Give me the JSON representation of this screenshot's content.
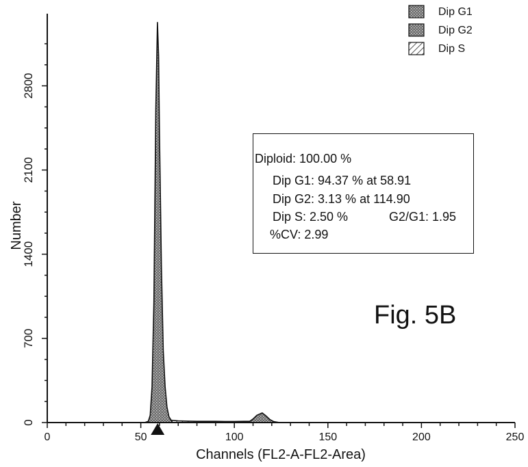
{
  "chart_data": {
    "type": "area",
    "xlabel": "Channels  (FL2-A-FL2-Area)",
    "ylabel": "Number",
    "xlim": [
      0,
      250
    ],
    "ylim": [
      0,
      3400
    ],
    "x_ticks": [
      0,
      50,
      100,
      150,
      200,
      250
    ],
    "y_ticks": [
      0,
      700,
      1400,
      2100,
      2800
    ],
    "grid": false,
    "legend_position": "top-right",
    "legend": [
      {
        "label": "Dip G1",
        "pattern": "dark-stipple"
      },
      {
        "label": "Dip G2",
        "pattern": "dark-stipple"
      },
      {
        "label": "Dip S",
        "pattern": "diagonal-hatch"
      }
    ],
    "series": [
      {
        "name": "Dip G1",
        "x": [
          52,
          54,
          55,
          56,
          57,
          58,
          58.91,
          59.5,
          60,
          61,
          62,
          63,
          64,
          65,
          67
        ],
        "y": [
          0,
          10,
          60,
          300,
          1000,
          2600,
          3330,
          3050,
          2400,
          1300,
          600,
          300,
          130,
          50,
          0
        ]
      },
      {
        "name": "Dip G2",
        "x": [
          106,
          108,
          110,
          112,
          114.9,
          117,
          119,
          121,
          124
        ],
        "y": [
          0,
          8,
          30,
          60,
          80,
          55,
          25,
          8,
          0
        ]
      },
      {
        "name": "Dip S",
        "x": [
          62,
          66,
          70,
          75,
          80,
          85,
          90,
          95,
          100,
          105,
          110,
          115,
          120,
          125
        ],
        "y": [
          0,
          20,
          14,
          12,
          10,
          10,
          10,
          9,
          9,
          10,
          10,
          9,
          5,
          0
        ]
      }
    ],
    "marker_x": 59,
    "stats": {
      "line1": "Diploid:  100.00  %",
      "line2": "Dip G1: 94.37 % at 58.91",
      "line3": "Dip G2: 3.13 % at 114.90",
      "line4a": "Dip S: 2.50 %",
      "line4b": "G2/G1: 1.95",
      "line5": "%CV: 2.99"
    },
    "annotation": "Fig. 5B"
  }
}
